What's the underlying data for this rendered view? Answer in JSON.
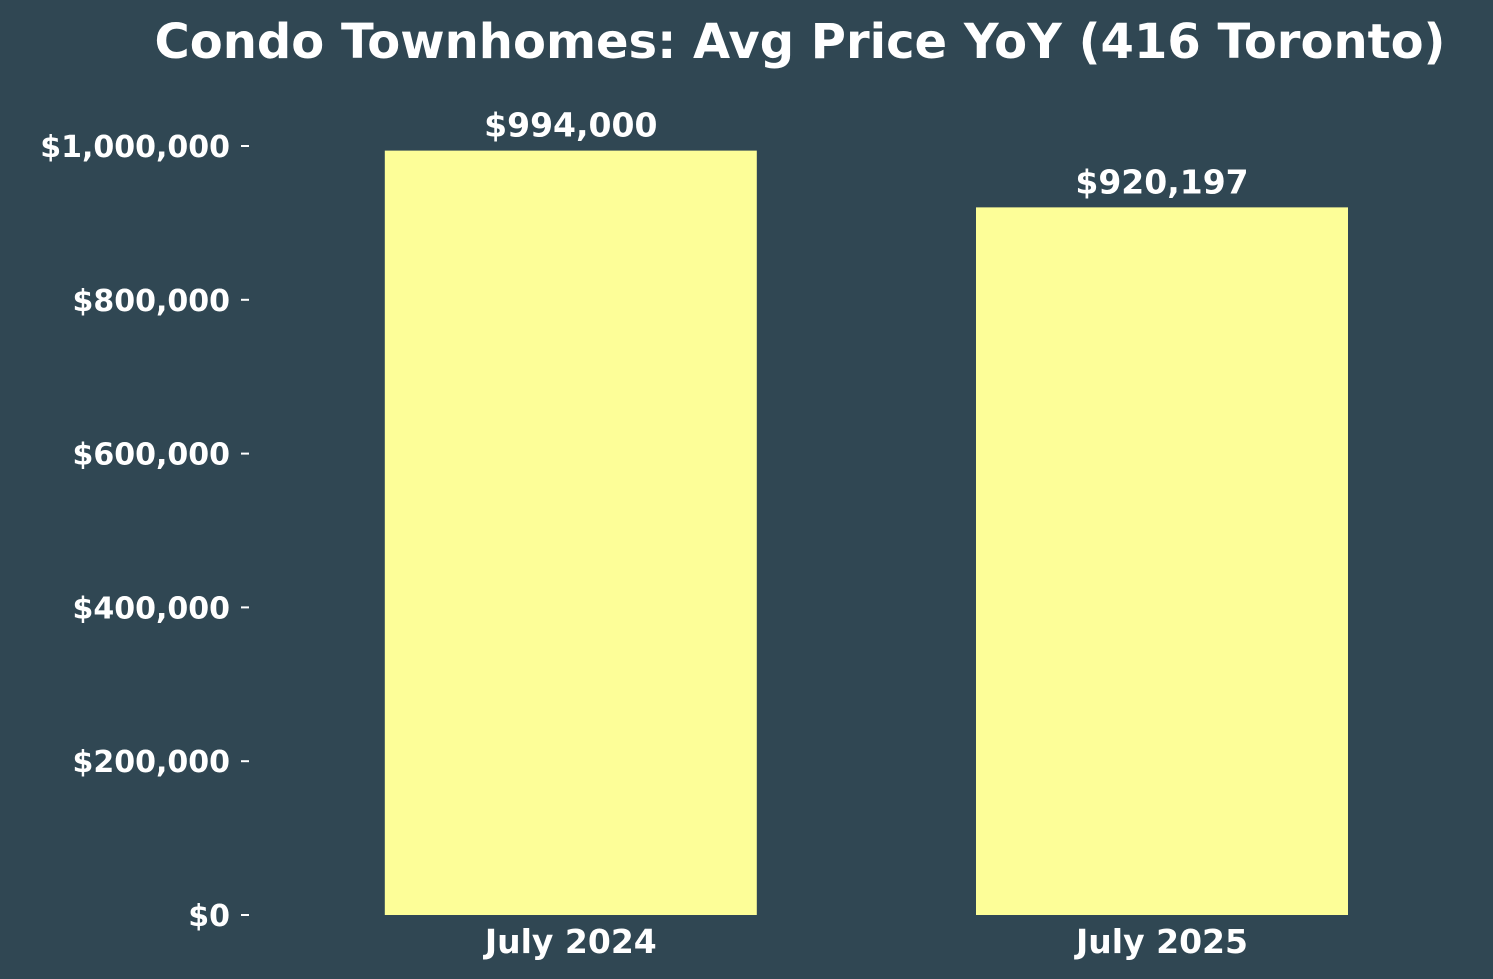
{
  "chart_data": {
    "type": "bar",
    "title": "Condo Townhomes: Avg Price YoY (416 Toronto)",
    "categories": [
      "July 2024",
      "July 2025"
    ],
    "values": [
      994000,
      920197
    ],
    "value_labels": [
      "$994,000",
      "$920,197"
    ],
    "xlabel": "",
    "ylabel": "",
    "ylim": [
      0,
      1000000
    ],
    "y_ticks": [
      0,
      200000,
      400000,
      600000,
      800000,
      1000000
    ],
    "y_tick_labels": [
      "$0",
      "$200,000",
      "$400,000",
      "$600,000",
      "$800,000",
      "$1,000,000"
    ],
    "grid": false,
    "legend": "none",
    "colors": {
      "background": "#304753",
      "bar": "#fdfe98",
      "text": "#ffffff"
    }
  }
}
